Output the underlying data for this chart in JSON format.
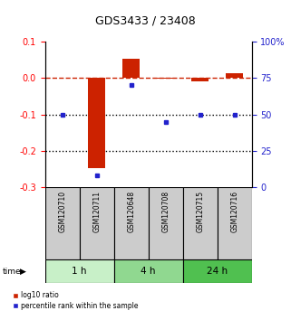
{
  "title": "GDS3433 / 23408",
  "samples": [
    "GSM120710",
    "GSM120711",
    "GSM120648",
    "GSM120708",
    "GSM120715",
    "GSM120716"
  ],
  "log10_ratio": [
    0.0,
    -0.248,
    0.053,
    -0.002,
    -0.008,
    0.012
  ],
  "percentile_rank": [
    50,
    8,
    70,
    45,
    50,
    50
  ],
  "left_yticks": [
    0.1,
    0.0,
    -0.1,
    -0.2,
    -0.3
  ],
  "right_yticks": [
    100,
    75,
    50,
    25,
    0
  ],
  "right_yticklabels": [
    "100%",
    "75",
    "50",
    "25",
    "0"
  ],
  "time_groups": [
    {
      "label": "1 h",
      "cols": [
        0,
        1
      ],
      "color": "#c8f0c8"
    },
    {
      "label": "4 h",
      "cols": [
        2,
        3
      ],
      "color": "#90d890"
    },
    {
      "label": "24 h",
      "cols": [
        4,
        5
      ],
      "color": "#50c050"
    }
  ],
  "bar_color": "#cc2200",
  "dot_color": "#2222cc",
  "dashed_line_color": "#cc2200",
  "dotted_line_color": "#000000",
  "bg_color": "#ffffff",
  "bar_width": 0.5
}
